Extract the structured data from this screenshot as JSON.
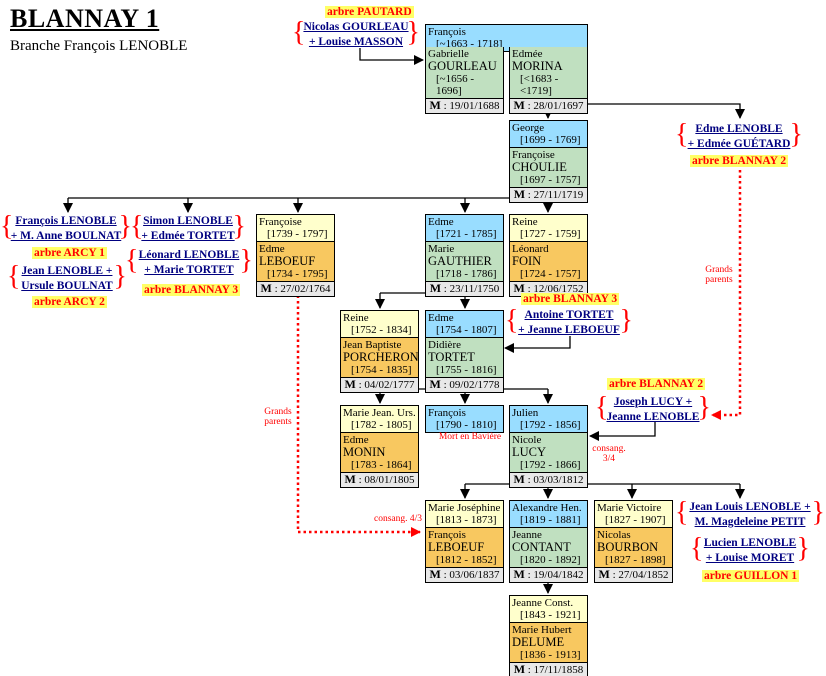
{
  "header": {
    "title": "BLANNAY 1",
    "subtitle": "Branche François LENOBLE"
  },
  "colors": {
    "male": "#99ddff",
    "female": "#ffffcc",
    "spouse_in_line": "#c0e0c0",
    "spouse_out": "#f8c860",
    "marriage": "#e8e8e8",
    "link": "#000080",
    "tree_label": "#ff0000",
    "tree_label_bg": "#ffff66"
  },
  "boxes": {
    "francois1663": {
      "top_name": "François",
      "top_dates": "[~1663 - 1718]",
      "type": "male"
    },
    "gabrielle": {
      "first": "Gabrielle",
      "last": "GOURLEAU",
      "dates": "[~1656 - 1696]",
      "marriage": "19/01/1688",
      "spouse_color": "green"
    },
    "edmee": {
      "first": "Edmée",
      "last": "MORINA",
      "dates": "[<1683 - <1719]",
      "marriage": "28/01/1697",
      "spouse_color": "green"
    },
    "george": {
      "top_name": "George",
      "top_dates": "[1699 - 1769]",
      "type": "male",
      "first": "Françoise",
      "last": "CHOULIE",
      "dates": "[1697 - 1757]",
      "marriage": "27/11/1719",
      "spouse_color": "green"
    },
    "francoise1739": {
      "top_name": "Françoise",
      "top_dates": "[1739 - 1797]",
      "type": "female",
      "first": "Edme",
      "last": "LEBOEUF",
      "dates": "[1734 - 1795]",
      "marriage": "27/02/1764",
      "spouse_color": "orange"
    },
    "edme1721": {
      "top_name": "Edme",
      "top_dates": "[1721 - 1785]",
      "type": "male",
      "first": "Marie",
      "last": "GAUTHIER",
      "dates": "[1718 - 1786]",
      "marriage": "23/11/1750",
      "spouse_color": "green"
    },
    "reine1727": {
      "top_name": "Reine",
      "top_dates": "[1727 - 1759]",
      "type": "female",
      "first": "Léonard",
      "last": "FOIN",
      "dates": "[1724 - 1757]",
      "marriage": "12/06/1752",
      "spouse_color": "orange"
    },
    "reine1752": {
      "top_name": "Reine",
      "top_dates": "[1752 - 1834]",
      "type": "female",
      "first": "Jean Baptiste",
      "last": "PORCHERON",
      "dates": "[1754 - 1835]",
      "marriage": "04/02/1777",
      "spouse_color": "orange"
    },
    "edme1754": {
      "top_name": "Edme",
      "top_dates": "[1754 - 1807]",
      "type": "male",
      "first": "Didière",
      "last": "TORTET",
      "dates": "[1755 - 1816]",
      "marriage": "09/02/1778",
      "spouse_color": "green"
    },
    "mariejean": {
      "top_name": "Marie Jean. Urs.",
      "top_dates": "[1782 - 1805]",
      "type": "female",
      "first": "Edme",
      "last": "MONIN",
      "dates": "[1783 - 1864]",
      "marriage": "08/01/1805",
      "spouse_color": "orange"
    },
    "francois1790": {
      "top_name": "François",
      "top_dates": "[1790 - 1810]",
      "type": "male"
    },
    "julien": {
      "top_name": "Julien",
      "top_dates": "[1792 - 1856]",
      "type": "male",
      "first": "Nicole",
      "last": "LUCY",
      "dates": "[1792 - 1866]",
      "marriage": "03/03/1812",
      "spouse_color": "green"
    },
    "mariejosephine": {
      "top_name": "Marie Joséphine",
      "top_dates": "[1813 - 1873]",
      "type": "female",
      "first": "François",
      "last": "LEBOEUF",
      "dates": "[1812 - 1852]",
      "marriage": "03/06/1837",
      "spouse_color": "orange"
    },
    "alexandre": {
      "top_name": "Alexandre Hen.",
      "top_dates": "[1819 - 1881]",
      "type": "male",
      "first": "Jeanne",
      "last": "CONTANT",
      "dates": "[1820 - 1892]",
      "marriage": "19/04/1842",
      "spouse_color": "green"
    },
    "marievictoire": {
      "top_name": "Marie Victoire",
      "top_dates": "[1827 - 1907]",
      "type": "female",
      "first": "Nicolas",
      "last": "BOURBON",
      "dates": "[1827 - 1898]",
      "marriage": "27/04/1852",
      "spouse_color": "orange"
    },
    "jeanneconst": {
      "top_name": "Jeanne Const.",
      "top_dates": "[1843 - 1921]",
      "type": "female",
      "first": "Marie Hubert",
      "last": "DELUME",
      "dates": "[1836 - 1913]",
      "marriage": "17/11/1858",
      "spouse_color": "orange"
    }
  },
  "marriage_prefix": "M",
  "links": {
    "gourleau": [
      "Nicolas GOURLEAU",
      "+ Louise MASSON"
    ],
    "edme_lenoble": [
      "Edme LENOBLE",
      "+ Edmée GUÉTARD"
    ],
    "francois_lenoble": [
      "François LENOBLE",
      "+ M. Anne BOULNAT"
    ],
    "jean_lenoble": [
      "Jean LENOBLE +",
      "Ursule BOULNAT"
    ],
    "simon_lenoble": [
      "Simon LENOBLE",
      "+ Edmée TORTET"
    ],
    "leonard_lenoble": [
      "Léonard LENOBLE",
      "+ Marie TORTET"
    ],
    "antoine_tortet": [
      "Antoine TORTET",
      "+ Jeanne LEBOEUF"
    ],
    "joseph_lucy": [
      "Joseph LUCY +",
      "Jeanne LENOBLE"
    ],
    "jean_louis": [
      "Jean Louis LENOBLE +",
      "M. Magdeleine PETIT"
    ],
    "lucien": [
      "Lucien LENOBLE",
      "+ Louise MORET"
    ]
  },
  "trees": {
    "pautard": "arbre PAUTARD",
    "blannay2a": "arbre BLANNAY 2",
    "arcy1": "arbre ARCY 1",
    "arcy2": "arbre ARCY 2",
    "blannay3a": "arbre BLANNAY 3",
    "blannay3b": "arbre BLANNAY 3",
    "blannay2b": "arbre BLANNAY 2",
    "guillon1": "arbre GUILLON 1"
  },
  "notes": {
    "grands_parents_left": "Grands parents",
    "grands_parents_right": "Grands parents",
    "mort_baviere": "Mort en Bavière",
    "consang_34": "consang. 3/4",
    "consang_43": "consang. 4/3"
  }
}
